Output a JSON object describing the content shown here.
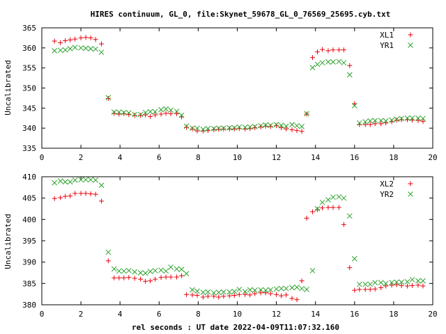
{
  "title": "HIRES continuum, GL_0, file:Skynet_59678_GL_0_76569_25695.cyb.txt",
  "xlabel": "rel seconds : UT date 2022-04-09T11:07:32.160",
  "colors": {
    "red": "#e8000b",
    "green": "#2ca02c"
  },
  "chart_data": [
    {
      "type": "scatter",
      "ylabel": "Uncalibrated",
      "xlim": [
        0,
        20
      ],
      "ylim": [
        335,
        365
      ],
      "xticks": [
        0,
        2,
        4,
        6,
        8,
        10,
        12,
        14,
        16,
        18,
        20
      ],
      "yticks": [
        335,
        340,
        345,
        350,
        355,
        360,
        365
      ],
      "legend_position": "top-right",
      "x": [
        0.65,
        0.95,
        1.2,
        1.45,
        1.7,
        2.0,
        2.25,
        2.5,
        2.75,
        3.05,
        3.4,
        3.7,
        3.95,
        4.2,
        4.45,
        4.75,
        5.05,
        5.3,
        5.55,
        5.8,
        6.1,
        6.35,
        6.6,
        6.9,
        7.15,
        7.4,
        7.7,
        7.95,
        8.25,
        8.5,
        8.8,
        9.05,
        9.3,
        9.6,
        9.85,
        10.1,
        10.4,
        10.65,
        10.9,
        11.2,
        11.45,
        11.7,
        12.0,
        12.25,
        12.5,
        12.8,
        13.05,
        13.3,
        13.55,
        13.85,
        14.1,
        14.35,
        14.65,
        14.9,
        15.2,
        15.45,
        15.75,
        16.0,
        16.25,
        16.55,
        16.8,
        17.05,
        17.35,
        17.6,
        17.9,
        18.15,
        18.4,
        18.7,
        18.95,
        19.25,
        19.5
      ],
      "series": [
        {
          "name": "XL1",
          "marker": "plus",
          "color": "#e8000b",
          "values": [
            361.7,
            361.3,
            361.8,
            362.0,
            362.2,
            362.5,
            362.6,
            362.5,
            362.1,
            361.0,
            347.4,
            343.7,
            343.5,
            343.6,
            343.4,
            343.2,
            343.2,
            343.3,
            342.9,
            343.3,
            343.5,
            343.7,
            343.6,
            343.6,
            342.8,
            340.2,
            339.8,
            339.3,
            339.3,
            339.4,
            339.6,
            339.7,
            339.8,
            339.8,
            339.8,
            339.9,
            339.8,
            339.9,
            340.1,
            340.3,
            340.5,
            340.4,
            340.6,
            340.1,
            339.8,
            339.6,
            339.4,
            339.2,
            343.5,
            357.6,
            359.0,
            359.6,
            359.3,
            359.5,
            359.5,
            359.5,
            355.6,
            346.1,
            340.9,
            340.9,
            340.9,
            341.1,
            341.1,
            341.3,
            341.6,
            342.0,
            342.1,
            342.1,
            342.0,
            341.9,
            341.7
          ]
        },
        {
          "name": "YR1",
          "marker": "cross",
          "color": "#2ca02c",
          "values": [
            359.3,
            359.4,
            359.5,
            359.8,
            360.1,
            360.0,
            359.9,
            359.8,
            359.7,
            358.9,
            347.6,
            344.0,
            344.0,
            343.9,
            343.8,
            343.4,
            343.4,
            343.9,
            344.1,
            344.1,
            344.6,
            344.8,
            344.5,
            344.2,
            343.2,
            340.5,
            340.0,
            340.0,
            339.7,
            339.9,
            339.9,
            340.0,
            340.0,
            340.1,
            340.1,
            340.3,
            340.2,
            340.3,
            340.4,
            340.6,
            340.8,
            340.7,
            340.9,
            340.7,
            340.5,
            340.9,
            340.6,
            340.4,
            343.6,
            355.1,
            355.9,
            356.3,
            356.5,
            356.5,
            356.6,
            356.3,
            353.3,
            345.6,
            341.3,
            341.6,
            341.8,
            341.9,
            341.9,
            341.8,
            342.0,
            342.2,
            342.4,
            342.5,
            342.5,
            342.5,
            342.4
          ]
        }
      ]
    },
    {
      "type": "scatter",
      "ylabel": "Uncalibrated",
      "xlim": [
        0,
        20
      ],
      "ylim": [
        380,
        410
      ],
      "xticks": [
        0,
        2,
        4,
        6,
        8,
        10,
        12,
        14,
        16,
        18,
        20
      ],
      "yticks": [
        380,
        385,
        390,
        395,
        400,
        405,
        410
      ],
      "legend_position": "top-right",
      "x": [
        0.65,
        0.95,
        1.2,
        1.45,
        1.7,
        2.0,
        2.25,
        2.5,
        2.75,
        3.05,
        3.4,
        3.7,
        3.95,
        4.2,
        4.45,
        4.75,
        5.05,
        5.3,
        5.55,
        5.8,
        6.1,
        6.35,
        6.6,
        6.9,
        7.15,
        7.4,
        7.7,
        7.95,
        8.25,
        8.5,
        8.8,
        9.05,
        9.3,
        9.6,
        9.85,
        10.1,
        10.4,
        10.65,
        10.9,
        11.2,
        11.45,
        11.7,
        12.0,
        12.25,
        12.5,
        12.8,
        13.05,
        13.3,
        13.55,
        13.85,
        14.1,
        14.35,
        14.65,
        14.9,
        15.2,
        15.45,
        15.75,
        16.0,
        16.25,
        16.55,
        16.8,
        17.05,
        17.35,
        17.6,
        17.9,
        18.15,
        18.4,
        18.7,
        18.95,
        19.25,
        19.5
      ],
      "series": [
        {
          "name": "XL2",
          "marker": "plus",
          "color": "#e8000b",
          "values": [
            404.9,
            405.1,
            405.4,
            405.5,
            406.1,
            406.1,
            406.1,
            406.0,
            405.9,
            404.3,
            390.3,
            386.3,
            386.3,
            386.3,
            386.4,
            386.2,
            386.0,
            385.5,
            385.6,
            386.0,
            386.4,
            386.5,
            386.5,
            386.5,
            386.8,
            382.4,
            382.3,
            382.2,
            381.8,
            382.0,
            382.0,
            381.8,
            382.0,
            382.1,
            382.2,
            382.4,
            382.4,
            382.3,
            382.6,
            382.8,
            382.8,
            382.6,
            382.4,
            382.1,
            382.3,
            381.5,
            381.2,
            385.6,
            400.3,
            401.8,
            402.3,
            402.7,
            402.8,
            402.8,
            402.8,
            398.8,
            388.7,
            383.4,
            383.6,
            383.6,
            383.6,
            383.7,
            384.0,
            384.4,
            384.6,
            384.7,
            384.5,
            384.4,
            384.5,
            384.6,
            384.4
          ]
        },
        {
          "name": "YR2",
          "marker": "cross",
          "color": "#2ca02c",
          "values": [
            408.6,
            409.0,
            408.8,
            408.8,
            409.2,
            409.3,
            409.3,
            409.3,
            409.2,
            408.0,
            392.3,
            388.4,
            387.9,
            387.9,
            388.0,
            387.7,
            387.5,
            387.4,
            387.8,
            388.0,
            388.1,
            387.9,
            388.8,
            388.4,
            388.3,
            387.3,
            383.5,
            383.2,
            382.9,
            383.0,
            382.8,
            382.9,
            383.0,
            383.0,
            383.1,
            383.6,
            383.1,
            383.5,
            383.4,
            383.5,
            383.4,
            383.5,
            383.7,
            383.8,
            383.8,
            384.0,
            384.1,
            383.8,
            383.6,
            388.0,
            402.5,
            404.0,
            404.6,
            405.2,
            405.3,
            405.0,
            400.8,
            390.8,
            384.8,
            384.8,
            384.8,
            385.2,
            385.2,
            385.0,
            385.2,
            385.3,
            385.3,
            385.4,
            385.9,
            385.6,
            385.6
          ]
        }
      ]
    }
  ]
}
